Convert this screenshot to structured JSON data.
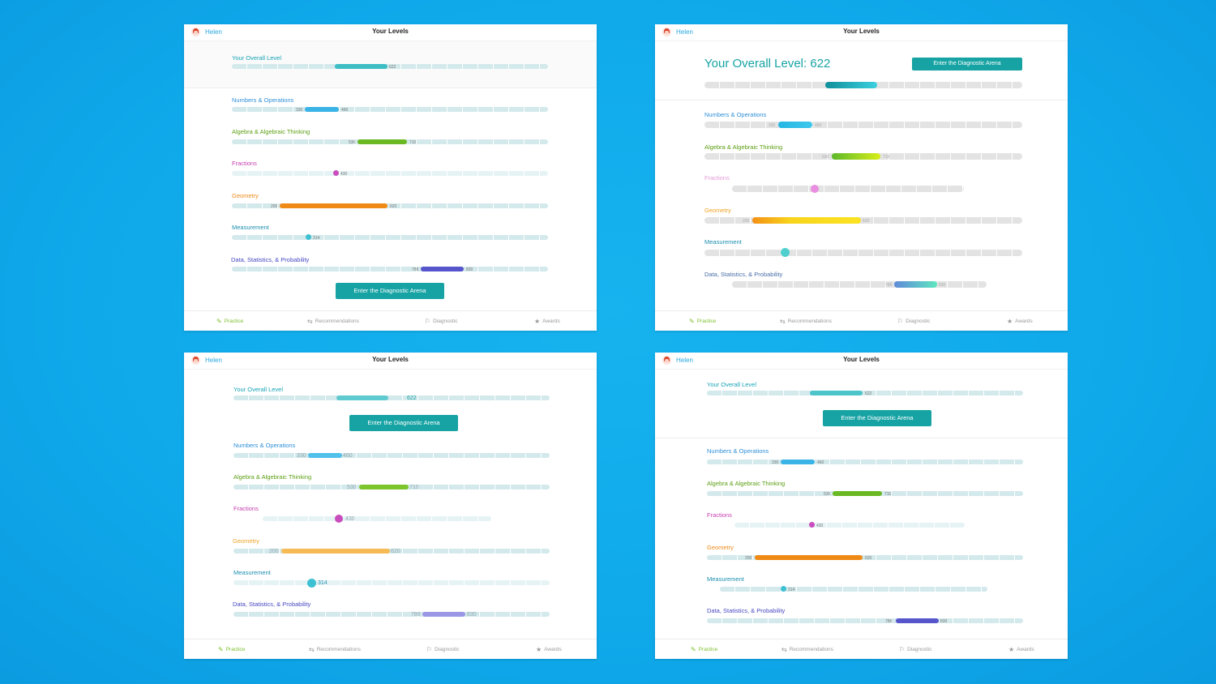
{
  "user": {
    "name": "Helen"
  },
  "screen": {
    "title": "Your Levels"
  },
  "cta_label": "Enter the Diagnostic Arena",
  "overall": {
    "label": "Your Overall Level",
    "big_label": "Your Overall Level: 622",
    "value": "622"
  },
  "categories": [
    {
      "name": "Numbers & Operations",
      "low": "330",
      "high": "460"
    },
    {
      "name": "Algebra & Algebraic Thinking",
      "low": "530",
      "high": "710"
    },
    {
      "name": "Fractions",
      "value": "430"
    },
    {
      "name": "Geometry",
      "low": "200",
      "high": "620"
    },
    {
      "name": "Measurement",
      "value": "314"
    },
    {
      "name": "Data, Statistics, & Probability",
      "low": "788",
      "high": "830"
    }
  ],
  "nav": [
    "Practice",
    "Recommendations",
    "Diagnostic",
    "Awards"
  ],
  "icons": {
    "practice": "pencil-icon",
    "recommendations": "signpost-icon",
    "diagnostic": "flag-icon",
    "awards": "star-icon"
  },
  "colors": {
    "background": "#10aaeb",
    "accent": "#17a3a4",
    "numbers": "#3ab3e6",
    "algebra": "#6ab822",
    "fractions": "#c94dbd",
    "geometry": "#f08a17",
    "measurement": "#3cc0d2",
    "data": "#5755cc",
    "practice_active": "#7cbf2c"
  }
}
